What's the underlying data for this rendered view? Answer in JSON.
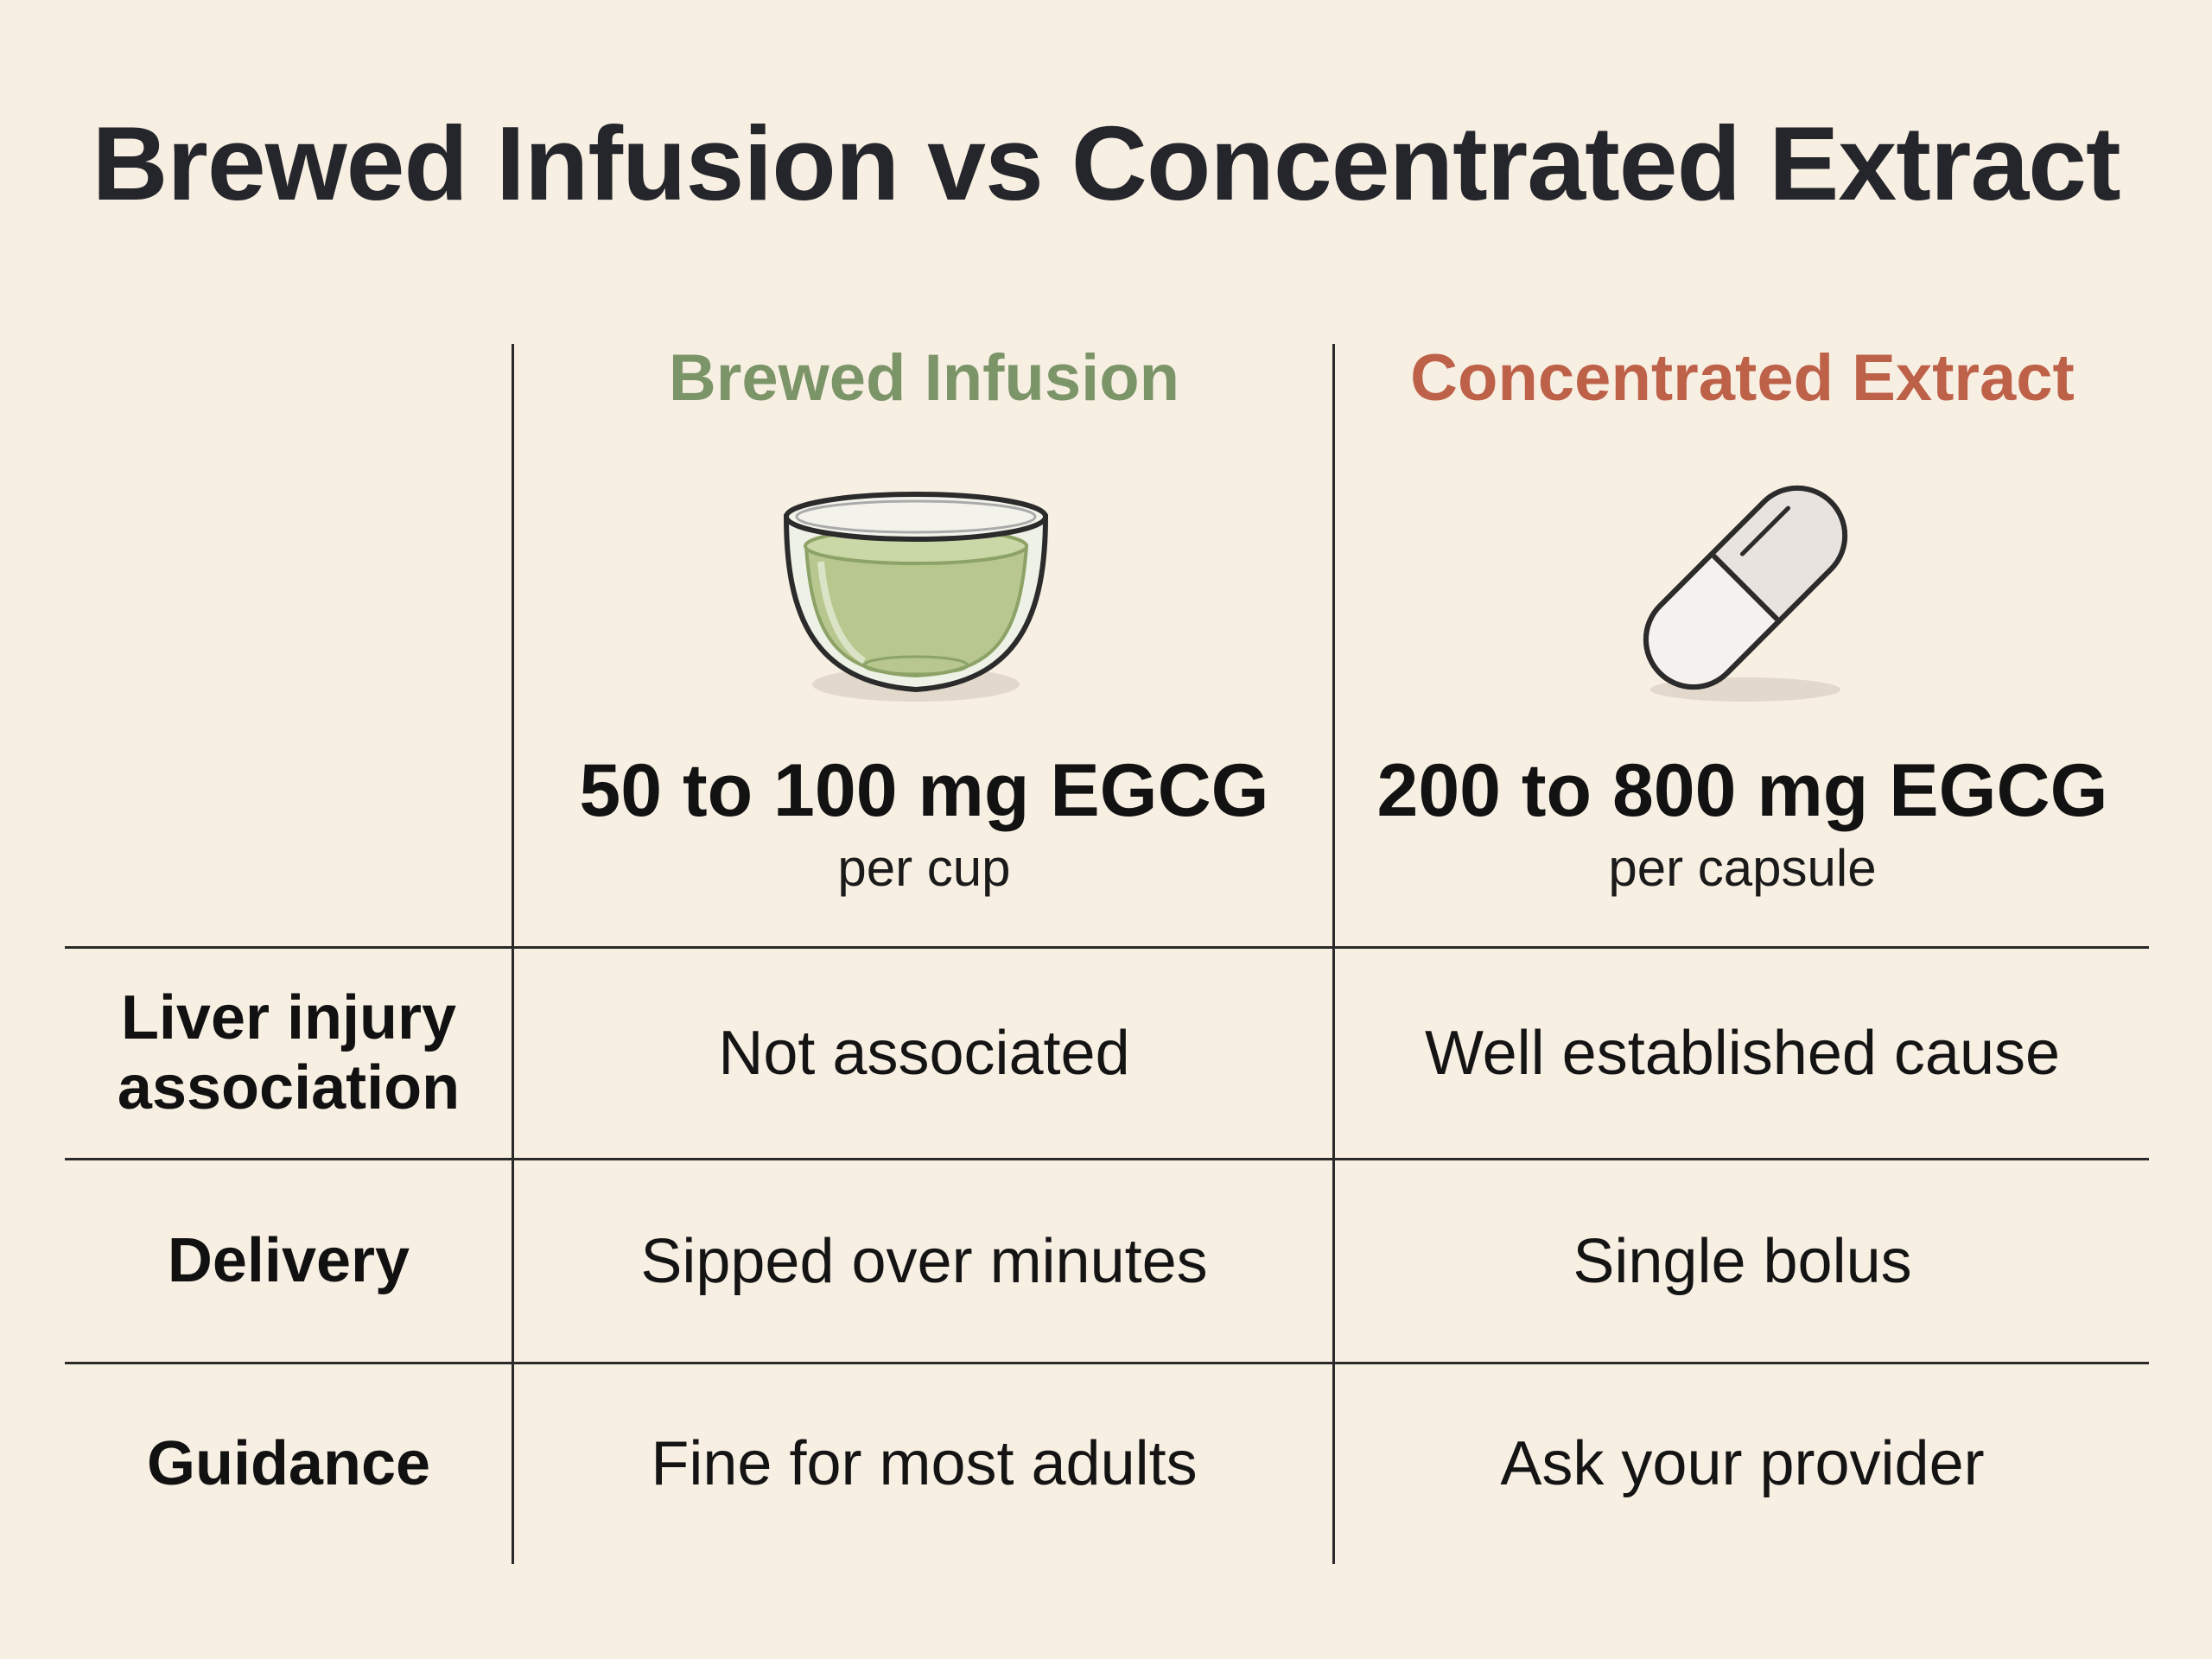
{
  "title": "Brewed Infusion vs Concentrated Extract",
  "colors": {
    "brewed": "#7b9468",
    "extract": "#bd6148",
    "text": "#1d1d1f",
    "background": "#f8efe3"
  },
  "columns": [
    {
      "heading": "Brewed Infusion",
      "icon": "teacup-icon",
      "amount": "50 to 100 mg EGCG",
      "unit": "per cup"
    },
    {
      "heading": "Concentrated Extract",
      "icon": "capsule-icon",
      "amount": "200 to 800 mg EGCG",
      "unit": "per capsule"
    }
  ],
  "rows": [
    {
      "label": "Liver injury association",
      "values": [
        "Not associated",
        "Well established cause"
      ]
    },
    {
      "label": "Delivery",
      "values": [
        "Sipped over minutes",
        "Single bolus"
      ]
    },
    {
      "label": "Guidance",
      "values": [
        "Fine for most adults",
        "Ask your provider"
      ]
    }
  ]
}
